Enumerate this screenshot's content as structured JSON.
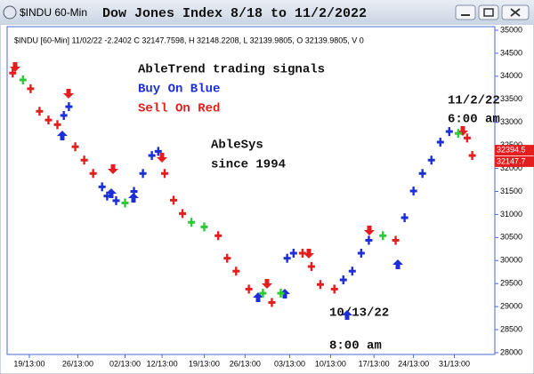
{
  "window_title": "$INDU 60-Min",
  "chart_data": {
    "type": "signal-bars",
    "title": "Dow Jones Index 8/18 to 11/2/2022",
    "info_line": "$INDU [60-Min] 11/02/22 -2.2402 C 32147.7598, H 32148.2208, L 32139.9805, O 32139.9805, V 0",
    "annotations": [
      "AbleTrend trading signals",
      "AbleSys",
      "since 1994",
      "11/2/22",
      "6:00 am",
      "10/13/22",
      "8:00 am"
    ],
    "series": [
      {
        "name": "Buy On Blue",
        "color": "#1c2fd6",
        "x": [
          43,
          47,
          73,
          77,
          84,
          98,
          105,
          112,
          117,
          218,
          223,
          262,
          269,
          276,
          282,
          310,
          317,
          324,
          331,
          338,
          345
        ],
        "values": [
          33150,
          33340,
          31600,
          31400,
          31300,
          31500,
          31890,
          32280,
          32370,
          30050,
          30160,
          29580,
          29770,
          30160,
          30440,
          30930,
          31510,
          31890,
          32180,
          32570,
          32800
        ]
      },
      {
        "name": "Sell On Red",
        "color": "#e41e1e",
        "x": [
          3,
          17,
          24,
          31,
          38,
          52,
          59,
          66,
          122,
          129,
          136,
          164,
          171,
          178,
          188,
          206,
          230,
          237,
          244,
          255,
          303,
          359,
          363
        ],
        "values": [
          34070,
          33730,
          33240,
          33050,
          32950,
          32470,
          32180,
          31890,
          31890,
          31310,
          31020,
          30540,
          30050,
          29770,
          29380,
          29090,
          30160,
          29870,
          29480,
          29380,
          30440,
          32660,
          32280
        ]
      },
      {
        "color": "#2ec83a",
        "x": [
          11,
          91,
          143,
          153,
          199,
          213,
          293,
          352
        ],
        "values": [
          33920,
          31250,
          30830,
          30730,
          29290,
          29290,
          30540,
          32760
        ]
      }
    ],
    "price_tags": [
      {
        "value": 32394.5,
        "color": "#e41e1e"
      },
      {
        "value": 32147.7,
        "color": "#e41e1e"
      }
    ],
    "xlim": [
      0,
      380
    ],
    "xticks": [
      {
        "value": 16,
        "label": "19/13:00"
      },
      {
        "value": 54,
        "label": "26/13:00"
      },
      {
        "value": 91,
        "label": "02/13:00"
      },
      {
        "value": 120,
        "label": "12/13:00"
      },
      {
        "value": 153,
        "label": "19/13:00"
      },
      {
        "value": 185,
        "label": "26/13:00"
      },
      {
        "value": 220,
        "label": "03/13:00"
      },
      {
        "value": 252,
        "label": "10/13:00"
      },
      {
        "value": 286,
        "label": "17/13:00"
      },
      {
        "value": 317,
        "label": "24/13:00"
      },
      {
        "value": 349,
        "label": "31/13:00"
      }
    ],
    "ylim": [
      28000,
      35000
    ],
    "yticks": [
      28000,
      28500,
      29000,
      29500,
      30000,
      30500,
      31000,
      31500,
      32000,
      32500,
      33000,
      33500,
      34000,
      34500,
      35000
    ],
    "grid": false
  }
}
